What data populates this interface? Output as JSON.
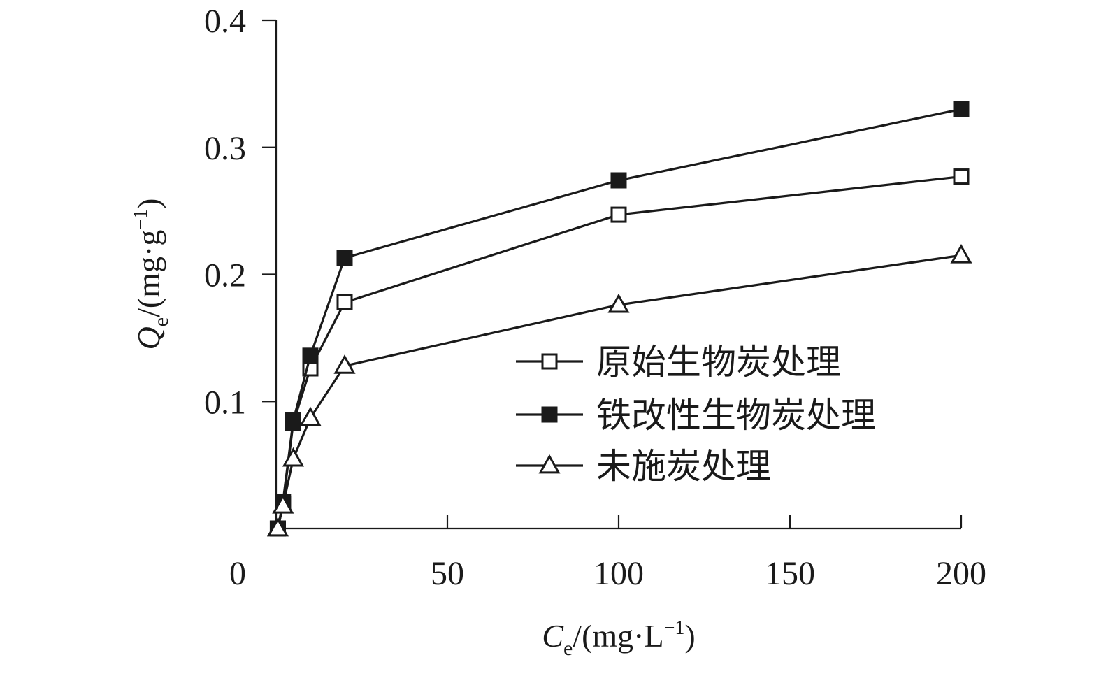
{
  "chart_data": {
    "type": "line",
    "xlabel": {
      "main": "C",
      "sub": "e",
      "unit_pre": "/(mg·L",
      "unit_sup": "−1",
      "unit_post": ")"
    },
    "ylabel": {
      "main": "Q",
      "sub": "e",
      "unit_pre": "/(mg·g",
      "unit_sup": "−1",
      "unit_post": ")"
    },
    "x_tick_labels": [
      "0",
      "50",
      "100",
      "150",
      "200"
    ],
    "y_tick_labels": [
      "0.1",
      "0.2",
      "0.3",
      "0.4"
    ],
    "x_scale": "piecewise: 0–50 and 50–100 linear, 100–200 compressed to same width as 50–100",
    "ylim": [
      0,
      0.4
    ],
    "grid": false,
    "legend_position": "center-right",
    "series": [
      {
        "name": "原始生物炭处理",
        "marker": "square-open",
        "x": [
          0.5,
          2.0,
          5.0,
          10.0,
          20.0,
          100.0,
          200.0
        ],
        "y": [
          0.0,
          0.019,
          0.083,
          0.126,
          0.178,
          0.247,
          0.277
        ]
      },
      {
        "name": "铁改性生物炭处理",
        "marker": "square-filled",
        "x": [
          0.5,
          2.0,
          5.0,
          10.0,
          20.0,
          100.0,
          200.0
        ],
        "y": [
          0.0,
          0.021,
          0.085,
          0.136,
          0.213,
          0.274,
          0.33
        ]
      },
      {
        "name": "未施炭处理",
        "marker": "triangle-open",
        "x": [
          0.5,
          2.0,
          5.0,
          10.0,
          20.0,
          100.0,
          200.0
        ],
        "y": [
          0.0,
          0.018,
          0.055,
          0.087,
          0.128,
          0.176,
          0.215
        ]
      }
    ],
    "colors": {
      "ink": "#1a1a1a",
      "background": "#ffffff"
    }
  }
}
